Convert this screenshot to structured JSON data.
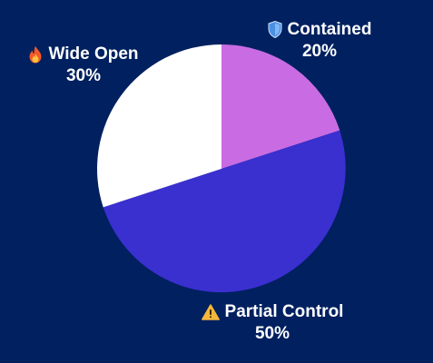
{
  "chart_data": {
    "type": "pie",
    "slices": [
      {
        "label": "Contained",
        "value": 20,
        "percent_label": "20%",
        "color": "#c96ce3",
        "icon": "shield-icon"
      },
      {
        "label": "Partial Control",
        "value": 50,
        "percent_label": "50%",
        "color": "#3a2fcf",
        "icon": "warning-icon"
      },
      {
        "label": "Wide Open",
        "value": 30,
        "percent_label": "30%",
        "color": "#ffffff",
        "icon": "fire-icon"
      }
    ],
    "start_angle_deg": 0,
    "direction": "clockwise",
    "background": "#00205f",
    "label_color": "#ffffff"
  }
}
